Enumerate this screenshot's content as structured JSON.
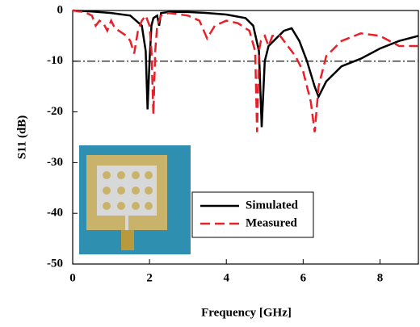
{
  "chart_data": {
    "type": "line",
    "x_label": "Frequency [GHz]",
    "y_label": "S11 (dB)",
    "xlim": [
      0,
      9
    ],
    "xticks": [
      0,
      2,
      4,
      6,
      8
    ],
    "ylim": [
      -50,
      0
    ],
    "yticks": [
      0,
      -10,
      -20,
      -30,
      -40,
      -50
    ],
    "reference_line": -10,
    "legend_position": "lower center",
    "series": [
      {
        "name": "Simulated",
        "color": "#000000",
        "dash": "solid",
        "x": [
          0,
          0.5,
          1,
          1.5,
          1.8,
          1.9,
          1.95,
          2.0,
          2.05,
          2.1,
          2.2,
          2.25,
          2.3,
          2.5,
          3,
          3.5,
          4,
          4.5,
          4.7,
          4.85,
          4.92,
          5.0,
          5.1,
          5.3,
          5.5,
          5.7,
          5.9,
          6.1,
          6.3,
          6.4,
          6.6,
          7,
          7.5,
          8,
          8.5,
          9
        ],
        "values": [
          0,
          -0.2,
          -0.5,
          -1,
          -3,
          -8,
          -19.5,
          -10,
          -3,
          -1.5,
          -1,
          -3,
          -0.5,
          -0.3,
          -0.3,
          -0.5,
          -0.8,
          -1.5,
          -3,
          -8,
          -23,
          -10,
          -7,
          -5.5,
          -4,
          -3.5,
          -6,
          -10,
          -15,
          -17,
          -14,
          -11,
          -9.5,
          -7.5,
          -6,
          -5
        ]
      },
      {
        "name": "Measured",
        "color": "#e8202a",
        "dash": "dashed",
        "x": [
          0,
          0.3,
          0.5,
          0.6,
          0.7,
          0.8,
          0.9,
          1,
          1.1,
          1.2,
          1.4,
          1.5,
          1.6,
          1.7,
          1.8,
          1.9,
          2.0,
          2.05,
          2.1,
          2.15,
          2.2,
          2.3,
          2.5,
          3,
          3.3,
          3.5,
          3.7,
          4,
          4.3,
          4.6,
          4.75,
          4.8,
          4.85,
          4.9,
          5.0,
          5.1,
          5.2,
          5.4,
          5.6,
          5.8,
          6.0,
          6.2,
          6.3,
          6.4,
          6.6,
          7,
          7.5,
          8,
          8.5,
          9
        ],
        "values": [
          0,
          -0.3,
          -1,
          -3,
          -2,
          -2.5,
          -4,
          -2,
          -3.5,
          -4,
          -5,
          -6,
          -8.5,
          -4,
          -2,
          -1,
          -3,
          -8,
          -20.5,
          -8,
          -3,
          -1,
          -0.5,
          -1,
          -2,
          -5.5,
          -3,
          -2,
          -2.5,
          -4,
          -8,
          -24,
          -8,
          -6,
          -5,
          -7,
          -5,
          -5,
          -7,
          -9,
          -12,
          -18,
          -24,
          -15,
          -9,
          -6,
          -4.5,
          -5,
          -7,
          -7
        ]
      }
    ]
  }
}
